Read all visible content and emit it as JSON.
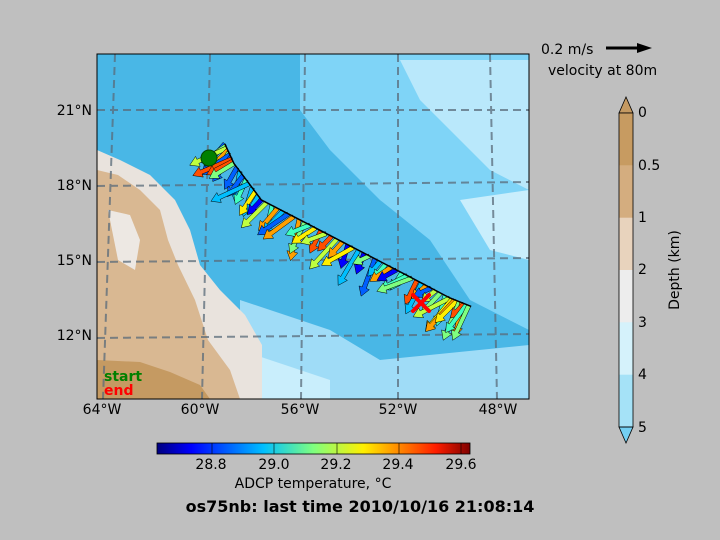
{
  "map": {
    "lat_ticks": [
      "21°N",
      "18°N",
      "15°N",
      "12°N"
    ],
    "lon_ticks": [
      "64°W",
      "60°W",
      "56°W",
      "52°W",
      "48°W"
    ],
    "start_label": "start",
    "end_label": "end",
    "colors": {
      "deep_ocean": "#6fcff5",
      "mid_ocean": "#49b7e6",
      "shallow_ocean": "#c9eefc",
      "land_light": "#e9e3dd",
      "land_mid": "#d9b892",
      "land_dark": "#c59a62",
      "start_marker": "#008000",
      "end_marker": "#ff0000",
      "track": "#000000"
    }
  },
  "velocity_key": {
    "scale_label": "0.2 m/s",
    "depth_label": "velocity at 80m"
  },
  "depth_colorbar": {
    "label": "Depth (km)",
    "ticks": [
      "0",
      "0.5",
      "1",
      "2",
      "3",
      "4",
      "5"
    ],
    "colors": [
      "#c79b61",
      "#d4ad7f",
      "#e8d3bd",
      "#ededed",
      "#d5f2fb",
      "#a5e2f7",
      "#74d0f3"
    ]
  },
  "temp_colorbar": {
    "label": "ADCP temperature, °C",
    "ticks": [
      "28.8",
      "29.0",
      "29.2",
      "29.4",
      "29.6"
    ],
    "range": [
      28.6,
      29.6
    ]
  },
  "title": "os75nb: last time 2010/10/16 21:08:14",
  "chart_data": {
    "type": "map",
    "title": "os75nb: last time 2010/10/16 21:08:14",
    "lon_range": [
      -64.2,
      -50.0
    ],
    "lat_range": [
      9.9,
      22.2
    ],
    "track": [
      {
        "lon": -60.0,
        "lat": 19.0
      },
      {
        "lon": -59.7,
        "lat": 18.3
      },
      {
        "lon": -58.8,
        "lat": 17.0
      },
      {
        "lon": -57.2,
        "lat": 16.1
      },
      {
        "lon": -55.6,
        "lat": 15.2
      },
      {
        "lon": -54.0,
        "lat": 14.3
      },
      {
        "lon": -52.6,
        "lat": 13.5
      },
      {
        "lon": -51.9,
        "lat": 13.2
      }
    ],
    "start": {
      "lon": -60.0,
      "lat": 19.0
    },
    "end": {
      "lon": -51.0,
      "lat": 12.9
    }
  }
}
